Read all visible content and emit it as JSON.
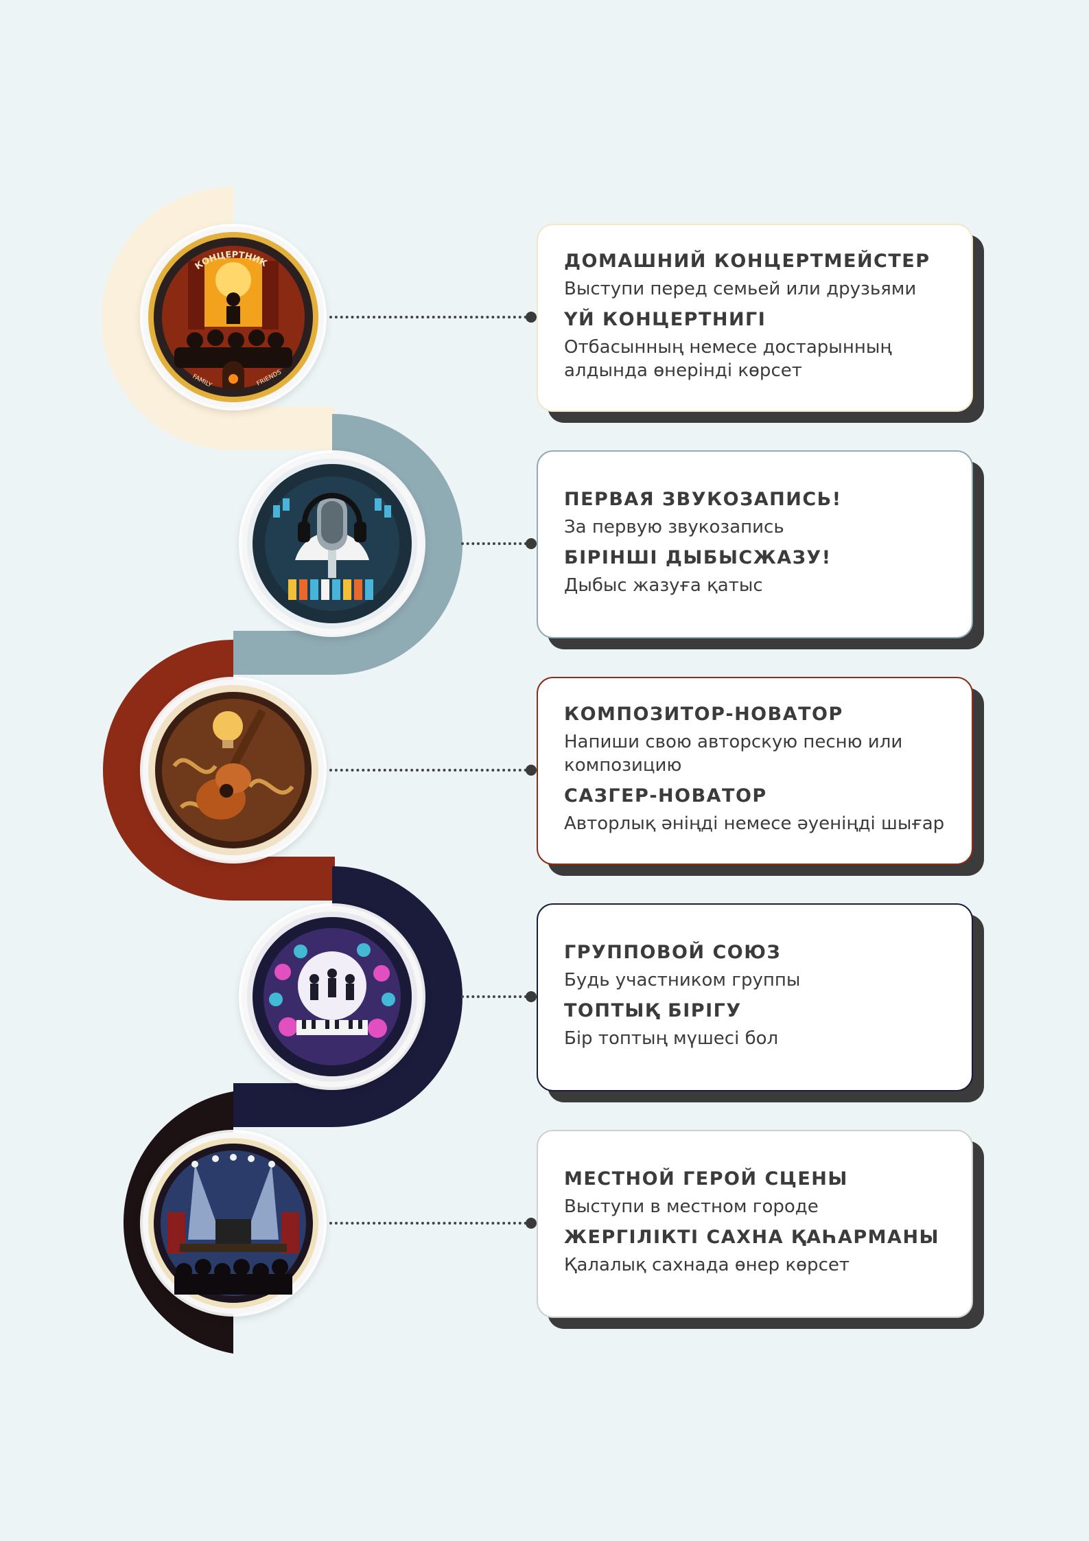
{
  "colors": {
    "background": "#ecf4f6",
    "segments": [
      "#fbf0db",
      "#8fabb4",
      "#8d2b17",
      "#1b1b3b",
      "#1d1213"
    ]
  },
  "steps": [
    {
      "icon": "home-concert-badge-icon",
      "badge_text": {
        "top": "КОНЦЕРТНИК",
        "left": "FAMILY",
        "right": "FRIENDS"
      },
      "title_ru": "ДОМАШНИЙ КОНЦЕРТМЕЙСТЕР",
      "desc_ru": "Выступи перед семьей или друзьями",
      "title_kk": "ҮЙ КОНЦЕРТНИГІ",
      "desc_kk": "Отбасыныңнемесе достарыныңалдында өнеріңді көрсет",
      "desc_kk_display": "Отбасынның немесе достарынның алдында өнерінді көрсет",
      "accent": "#f3e7c8"
    },
    {
      "icon": "studio-microphone-badge-icon",
      "title_ru": "ПЕРВАЯ ЗВУКОЗАПИСЬ!",
      "desc_ru": "За первую звукозапись",
      "title_kk": "БІРІНШІ ДЫБЫСЖАЗУ!",
      "desc_kk": "Дыбыс жазуға қатыс",
      "accent": "#8fabb4"
    },
    {
      "icon": "guitar-composer-badge-icon",
      "title_ru": "КОМПОЗИТОР-НОВАТОР",
      "desc_ru": "Напиши свою авторскую песню или композицию",
      "title_kk": "САЗГЕР-НОВАТОР",
      "desc_kk": "Авторлық әніңді немесе әуеніңді шығар",
      "accent": "#8d2b17"
    },
    {
      "icon": "band-union-badge-icon",
      "title_ru": "ГРУППОВОЙ СОЮЗ",
      "desc_ru": "Будь участником группы",
      "title_kk": "ТОПТЫҚ БІРІГУ",
      "desc_kk": "Бір топтың мүшесі бол",
      "accent": "#1b1b3b"
    },
    {
      "icon": "local-stage-badge-icon",
      "title_ru": "МЕСТНОЙ ГЕРОЙ СЦЕНЫ",
      "desc_ru": "Выступи в местном городе",
      "title_kk": "ЖЕРГІЛІКТІ САХНА ҚАҺАРМАНЫ",
      "desc_kk": "Қалалық сахнада өнер көрсет",
      "accent": "#cfcfcf"
    }
  ]
}
